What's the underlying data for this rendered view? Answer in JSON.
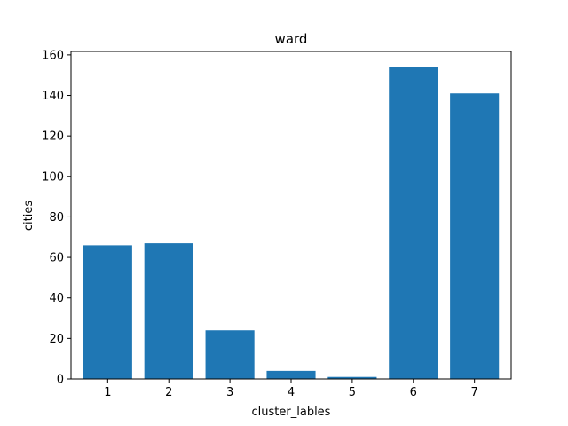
{
  "chart_data": {
    "type": "bar",
    "title": "ward",
    "xlabel": "cluster_lables",
    "ylabel": "cities",
    "categories": [
      "1",
      "2",
      "3",
      "4",
      "5",
      "6",
      "7"
    ],
    "values": [
      66,
      67,
      24,
      4,
      1,
      154,
      141
    ],
    "ylim": [
      0,
      161.7
    ],
    "yticks": [
      0,
      20,
      40,
      60,
      80,
      100,
      120,
      140,
      160
    ],
    "bar_color": "#1f77b4",
    "grid": false,
    "legend": "none"
  }
}
